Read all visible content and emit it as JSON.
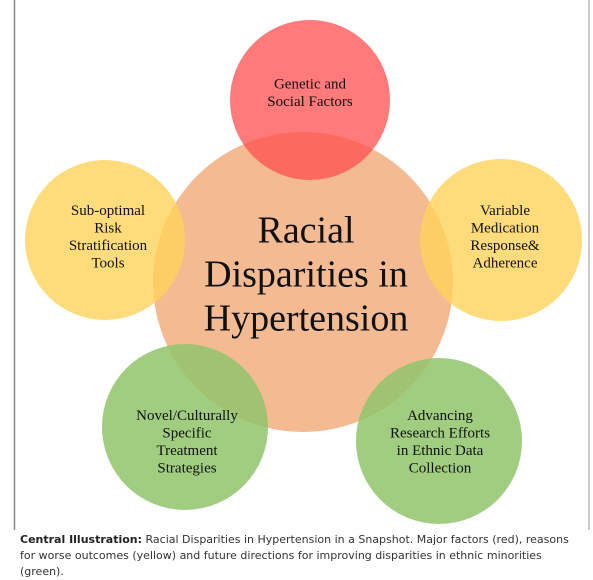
{
  "diagram": {
    "center": {
      "lines": [
        "Racial",
        "Disparities in",
        "Hypertension"
      ]
    },
    "nodes": [
      {
        "lines": [
          "Genetic and",
          "Social Factors"
        ]
      },
      {
        "lines": [
          "Sub-optimal",
          "Risk",
          "Stratification",
          "Tools"
        ]
      },
      {
        "lines": [
          "Variable",
          "Medication",
          "Response&",
          "Adherence"
        ]
      },
      {
        "lines": [
          "Novel/Culturally",
          "Specific",
          "Treatment",
          "Strategies"
        ]
      },
      {
        "lines": [
          "Advancing",
          "Research Efforts",
          "in Ethnic Data",
          "Collection"
        ]
      }
    ]
  },
  "caption": {
    "label": "Central Illustration:",
    "text": "Racial Disparities in Hypertension in a Snapshot. Major factors (red), reasons for worse outcomes (yellow) and future directions for improving disparities in ethnic minorities (green)."
  }
}
